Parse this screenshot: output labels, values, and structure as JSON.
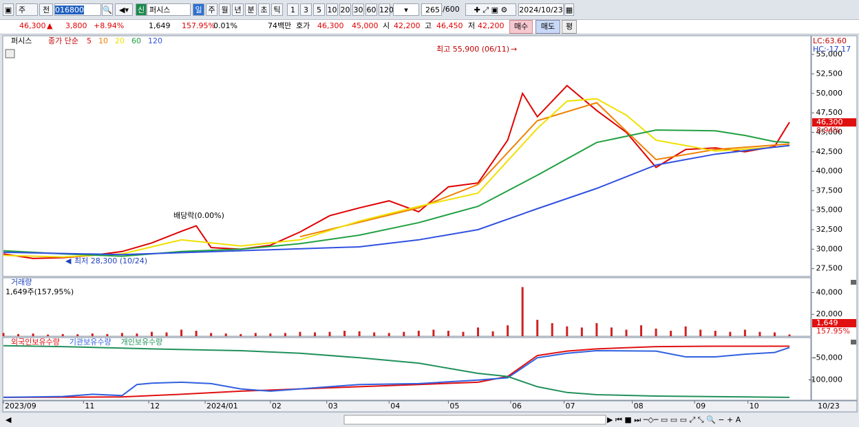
{
  "toolbar": {
    "market": "주",
    "scope": "전",
    "code": "016800",
    "badge": "신",
    "name": "퍼시스",
    "periods": [
      "일",
      "주",
      "월",
      "년",
      "분",
      "초",
      "틱"
    ],
    "intervals": [
      "1",
      "3",
      "5",
      "10",
      "20",
      "30",
      "60",
      "120"
    ],
    "count": "265",
    "count_max": "/600",
    "date": "2024/10/23"
  },
  "quote": {
    "price": "46,300",
    "change": "3,800",
    "change_pct": "+8.94%",
    "volume": "1,649",
    "volume_pct": "157.95%",
    "turnover_pct": "0.01%",
    "amount": "74백만",
    "bid_label": "호가",
    "ask": "46,300",
    "bid": "45,000",
    "open_label": "시",
    "open": "42,200",
    "high_label": "고",
    "high": "46,450",
    "low_label": "저",
    "low": "42,200",
    "buy": "매수",
    "sell": "매도",
    "eval": "평"
  },
  "chart_data": [
    {
      "type": "line",
      "label": "퍼시스",
      "legend_title": "종가 단순",
      "lc": "LC:63.60",
      "hc": "HC:-17.17",
      "last_price": "46,300",
      "last_pct": "8.94%",
      "annotations": [
        "최고 55,900 (06/11)",
        "배당락(0.00%)",
        "최저 28,300 (10/24)"
      ],
      "xlim": [
        0,
        265
      ],
      "xticks": [
        {
          "value": 0,
          "label": "2023/09"
        },
        {
          "value": 27,
          "label": "11"
        },
        {
          "value": 49,
          "label": "12"
        },
        {
          "value": 68,
          "label": "2024/01"
        },
        {
          "value": 90,
          "label": "02"
        },
        {
          "value": 109,
          "label": "03"
        },
        {
          "value": 130,
          "label": "04"
        },
        {
          "value": 150,
          "label": "05"
        },
        {
          "value": 171,
          "label": "06"
        },
        {
          "value": 189,
          "label": "07"
        },
        {
          "value": 212,
          "label": "08"
        },
        {
          "value": 233,
          "label": "09"
        },
        {
          "value": 251,
          "label": "10"
        }
      ],
      "last_date": "10/23",
      "ylim": [
        26500,
        57400
      ],
      "yticks": [
        {
          "value": 27500,
          "label": "27,500"
        },
        {
          "value": 30000,
          "label": "30,000"
        },
        {
          "value": 32500,
          "label": "32,500"
        },
        {
          "value": 35000,
          "label": "35,000"
        },
        {
          "value": 37500,
          "label": "37,500"
        },
        {
          "value": 40000,
          "label": "40,000"
        },
        {
          "value": 42500,
          "label": "42,500"
        },
        {
          "value": 45000,
          "label": "45,000"
        },
        {
          "value": 47500,
          "label": "47,500"
        },
        {
          "value": 50000,
          "label": "50,000"
        },
        {
          "value": 52500,
          "label": "52,500"
        },
        {
          "value": 55000,
          "label": "55,000"
        }
      ],
      "series": [
        {
          "name": "5",
          "color": "#e00000",
          "x": [
            0,
            10,
            20,
            30,
            40,
            50,
            60,
            65,
            70,
            80,
            90,
            100,
            110,
            120,
            130,
            140,
            150,
            160,
            170,
            175,
            180,
            190,
            200,
            210,
            220,
            230,
            240,
            250,
            260,
            265
          ],
          "values": [
            29400,
            28800,
            28900,
            29200,
            29700,
            30800,
            32300,
            33000,
            30200,
            30000,
            30500,
            32200,
            34300,
            35300,
            36200,
            34800,
            38000,
            38500,
            44000,
            50000,
            47000,
            51000,
            47800,
            45000,
            40500,
            42800,
            43000,
            42500,
            43200,
            46300
          ]
        },
        {
          "name": "10",
          "color": "#f08000",
          "x": [
            100,
            140,
            160,
            180,
            200,
            220,
            240,
            265
          ],
          "values": [
            31600,
            35300,
            38300,
            46500,
            48800,
            41500,
            42800,
            43500
          ]
        },
        {
          "name": "20",
          "color": "#f0e000",
          "x": [
            0,
            20,
            40,
            60,
            80,
            100,
            120,
            140,
            160,
            180,
            190,
            200,
            210,
            220,
            240,
            260,
            265
          ],
          "values": [
            29200,
            29000,
            29400,
            31200,
            30400,
            31200,
            33600,
            35500,
            37200,
            45500,
            49000,
            49300,
            47200,
            44000,
            42600,
            43100,
            43300
          ]
        },
        {
          "name": "60",
          "color": "#20a040",
          "x": [
            0,
            20,
            40,
            60,
            80,
            100,
            120,
            140,
            160,
            180,
            200,
            220,
            240,
            250,
            260,
            265
          ],
          "values": [
            29800,
            29400,
            29100,
            29700,
            30000,
            30700,
            31800,
            33400,
            35500,
            39500,
            43700,
            45300,
            45200,
            44600,
            43800,
            43700
          ]
        },
        {
          "name": "120",
          "color": "#3050e0",
          "x": [
            0,
            40,
            80,
            120,
            140,
            160,
            180,
            200,
            220,
            240,
            260,
            265
          ],
          "values": [
            29600,
            29300,
            29800,
            30300,
            31200,
            32500,
            35200,
            37800,
            40800,
            42200,
            43100,
            43300
          ]
        }
      ]
    },
    {
      "type": "bar",
      "label": "거래량",
      "sublabel": "1,649주(157,95%)",
      "last_value": "1,649",
      "last_pct": "157.95%",
      "color": "#d02020",
      "ylim": [
        0,
        53500
      ],
      "yticks": [
        {
          "value": 20000,
          "label": "20,000"
        },
        {
          "value": 40000,
          "label": "40,000"
        }
      ],
      "x": [
        0,
        5,
        10,
        15,
        20,
        25,
        30,
        35,
        40,
        45,
        50,
        55,
        60,
        65,
        70,
        75,
        80,
        85,
        90,
        95,
        100,
        105,
        110,
        115,
        120,
        125,
        130,
        135,
        140,
        145,
        150,
        155,
        160,
        165,
        170,
        175,
        180,
        185,
        190,
        195,
        200,
        205,
        210,
        215,
        220,
        225,
        230,
        235,
        240,
        245,
        250,
        255,
        260,
        265
      ],
      "values": [
        3000,
        2000,
        2500,
        1500,
        2000,
        1800,
        2500,
        2000,
        3000,
        2500,
        4000,
        3500,
        6000,
        5000,
        3000,
        2500,
        2000,
        3000,
        2500,
        3000,
        4000,
        3500,
        4000,
        5000,
        4500,
        3500,
        3000,
        4000,
        5000,
        6000,
        5000,
        4000,
        8000,
        4500,
        10000,
        45000,
        15000,
        12000,
        9000,
        8000,
        12000,
        8000,
        6000,
        10000,
        7000,
        5000,
        9000,
        6000,
        5000,
        4000,
        6000,
        4000,
        3500,
        1649
      ]
    },
    {
      "type": "line",
      "ylim": [
        -145300,
        -4700
      ],
      "yticks": [
        {
          "value": -50000,
          "label": "-50,000"
        },
        {
          "value": -100000,
          "label": "-100,000"
        }
      ],
      "series": [
        {
          "name": "외국인보유수량",
          "color": "#e01010",
          "x": [
            0,
            40,
            60,
            80,
            100,
            120,
            140,
            160,
            170,
            180,
            190,
            200,
            220,
            240,
            265
          ],
          "values": [
            -139000,
            -138000,
            -132000,
            -125000,
            -120000,
            -115000,
            -110000,
            -105000,
            -92000,
            -45000,
            -35000,
            -30000,
            -25000,
            -24000,
            -24000
          ]
        },
        {
          "name": "기관보유수량",
          "color": "#3060e0",
          "x": [
            0,
            20,
            30,
            40,
            45,
            50,
            60,
            70,
            80,
            90,
            100,
            120,
            140,
            160,
            170,
            180,
            190,
            200,
            220,
            230,
            240,
            250,
            260,
            265
          ],
          "values": [
            -139000,
            -137000,
            -132000,
            -135000,
            -110000,
            -107000,
            -105000,
            -108000,
            -120000,
            -125000,
            -120000,
            -110000,
            -108000,
            -100000,
            -95000,
            -50000,
            -40000,
            -34000,
            -35000,
            -48000,
            -48000,
            -42000,
            -38000,
            -27000
          ]
        },
        {
          "name": "개인보유수량",
          "color": "#20905a",
          "x": [
            0,
            20,
            50,
            80,
            100,
            120,
            140,
            160,
            170,
            180,
            190,
            200,
            220,
            250,
            265
          ],
          "values": [
            -23000,
            -25000,
            -30000,
            -34000,
            -40000,
            -50000,
            -62000,
            -85000,
            -92000,
            -115000,
            -128000,
            -133000,
            -136000,
            -138000,
            -139000
          ]
        }
      ]
    }
  ]
}
